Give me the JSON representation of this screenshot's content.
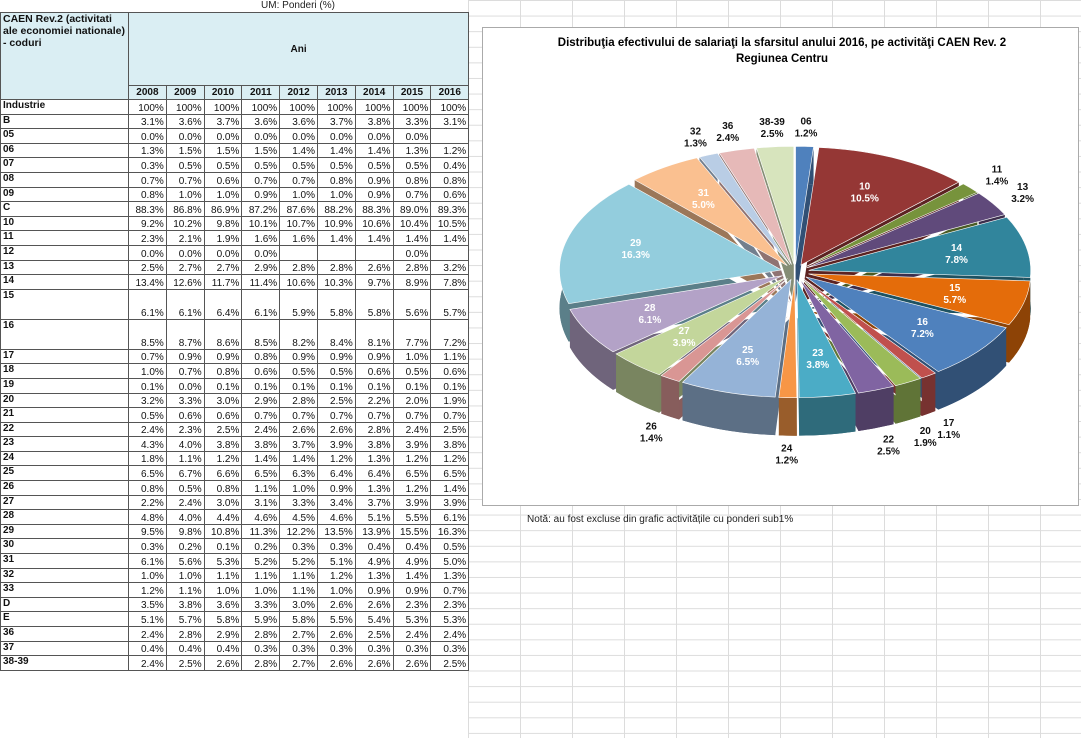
{
  "header_note": "UM: Ponderi (%)",
  "table": {
    "code_header": "CAEN Rev.2 (activitati ale economiei nationale) - coduri",
    "years_header": "Ani",
    "years": [
      "2008",
      "2009",
      "2010",
      "2011",
      "2012",
      "2013",
      "2014",
      "2015",
      "2016"
    ],
    "rows": [
      {
        "code": "Industrie",
        "cells": [
          "100%",
          "100%",
          "100%",
          "100%",
          "100%",
          "100%",
          "100%",
          "100%",
          "100%"
        ]
      },
      {
        "code": "B",
        "cells": [
          "3.1%",
          "3.6%",
          "3.7%",
          "3.6%",
          "3.6%",
          "3.7%",
          "3.8%",
          "3.3%",
          "3.1%"
        ]
      },
      {
        "code": "05",
        "cells": [
          "0.0%",
          "0.0%",
          "0.0%",
          "0.0%",
          "0.0%",
          "0.0%",
          "0.0%",
          "0.0%",
          null
        ]
      },
      {
        "code": "06",
        "cells": [
          "1.3%",
          "1.5%",
          "1.5%",
          "1.5%",
          "1.4%",
          "1.4%",
          "1.4%",
          "1.3%",
          "1.2%"
        ]
      },
      {
        "code": "07",
        "cells": [
          "0.3%",
          "0.5%",
          "0.5%",
          "0.5%",
          "0.5%",
          "0.5%",
          "0.5%",
          "0.5%",
          "0.4%"
        ]
      },
      {
        "code": "08",
        "cells": [
          "0.7%",
          "0.7%",
          "0.6%",
          "0.7%",
          "0.7%",
          "0.8%",
          "0.9%",
          "0.8%",
          "0.8%"
        ]
      },
      {
        "code": "09",
        "cells": [
          "0.8%",
          "1.0%",
          "1.0%",
          "0.9%",
          "1.0%",
          "1.0%",
          "0.9%",
          "0.7%",
          "0.6%"
        ]
      },
      {
        "code": "C",
        "cells": [
          "88.3%",
          "86.8%",
          "86.9%",
          "87.2%",
          "87.6%",
          "88.2%",
          "88.3%",
          "89.0%",
          "89.3%"
        ]
      },
      {
        "code": "10",
        "cells": [
          "9.2%",
          "10.2%",
          "9.8%",
          "10.1%",
          "10.7%",
          "10.9%",
          "10.6%",
          "10.4%",
          "10.5%"
        ]
      },
      {
        "code": "11",
        "cells": [
          "2.3%",
          "2.1%",
          "1.9%",
          "1.6%",
          "1.6%",
          "1.4%",
          "1.4%",
          "1.4%",
          "1.4%"
        ]
      },
      {
        "code": "12",
        "cells": [
          "0.0%",
          "0.0%",
          "0.0%",
          "0.0%",
          null,
          null,
          null,
          "0.0%",
          null
        ]
      },
      {
        "code": "13",
        "cells": [
          "2.5%",
          "2.7%",
          "2.7%",
          "2.9%",
          "2.8%",
          "2.8%",
          "2.6%",
          "2.8%",
          "3.2%"
        ]
      },
      {
        "code": "14",
        "cells": [
          "13.4%",
          "12.6%",
          "11.7%",
          "11.4%",
          "10.6%",
          "10.3%",
          "9.7%",
          "8.9%",
          "7.8%"
        ]
      },
      {
        "code": "15",
        "cells": [
          "6.1%",
          "6.1%",
          "6.4%",
          "6.1%",
          "5.9%",
          "5.8%",
          "5.8%",
          "5.6%",
          "5.7%"
        ]
      },
      {
        "code": "16",
        "cells": [
          "8.5%",
          "8.7%",
          "8.6%",
          "8.5%",
          "8.2%",
          "8.4%",
          "8.1%",
          "7.7%",
          "7.2%"
        ]
      },
      {
        "code": "17",
        "cells": [
          "0.7%",
          "0.9%",
          "0.9%",
          "0.8%",
          "0.9%",
          "0.9%",
          "0.9%",
          "1.0%",
          "1.1%"
        ]
      },
      {
        "code": "18",
        "cells": [
          "1.0%",
          "0.7%",
          "0.8%",
          "0.6%",
          "0.5%",
          "0.5%",
          "0.6%",
          "0.5%",
          "0.6%"
        ]
      },
      {
        "code": "19",
        "cells": [
          "0.1%",
          "0.0%",
          "0.1%",
          "0.1%",
          "0.1%",
          "0.1%",
          "0.1%",
          "0.1%",
          "0.1%"
        ]
      },
      {
        "code": "20",
        "cells": [
          "3.2%",
          "3.3%",
          "3.0%",
          "2.9%",
          "2.8%",
          "2.5%",
          "2.2%",
          "2.0%",
          "1.9%"
        ]
      },
      {
        "code": "21",
        "cells": [
          "0.5%",
          "0.6%",
          "0.6%",
          "0.7%",
          "0.7%",
          "0.7%",
          "0.7%",
          "0.7%",
          "0.7%"
        ]
      },
      {
        "code": "22",
        "cells": [
          "2.4%",
          "2.3%",
          "2.5%",
          "2.4%",
          "2.6%",
          "2.6%",
          "2.8%",
          "2.4%",
          "2.5%"
        ]
      },
      {
        "code": "23",
        "cells": [
          "4.3%",
          "4.0%",
          "3.8%",
          "3.8%",
          "3.7%",
          "3.9%",
          "3.8%",
          "3.9%",
          "3.8%"
        ]
      },
      {
        "code": "24",
        "cells": [
          "1.8%",
          "1.1%",
          "1.2%",
          "1.4%",
          "1.4%",
          "1.2%",
          "1.3%",
          "1.2%",
          "1.2%"
        ]
      },
      {
        "code": "25",
        "cells": [
          "6.5%",
          "6.7%",
          "6.6%",
          "6.5%",
          "6.3%",
          "6.4%",
          "6.4%",
          "6.5%",
          "6.5%"
        ]
      },
      {
        "code": "26",
        "cells": [
          "0.8%",
          "0.5%",
          "0.8%",
          "1.1%",
          "1.0%",
          "0.9%",
          "1.3%",
          "1.2%",
          "1.4%"
        ]
      },
      {
        "code": "27",
        "cells": [
          "2.2%",
          "2.4%",
          "3.0%",
          "3.1%",
          "3.3%",
          "3.4%",
          "3.7%",
          "3.9%",
          "3.9%"
        ]
      },
      {
        "code": "28",
        "cells": [
          "4.8%",
          "4.0%",
          "4.4%",
          "4.6%",
          "4.5%",
          "4.6%",
          "5.1%",
          "5.5%",
          "6.1%"
        ]
      },
      {
        "code": "29",
        "cells": [
          "9.5%",
          "9.8%",
          "10.8%",
          "11.3%",
          "12.2%",
          "13.5%",
          "13.9%",
          "15.5%",
          "16.3%"
        ]
      },
      {
        "code": "30",
        "cells": [
          "0.3%",
          "0.2%",
          "0.1%",
          "0.2%",
          "0.3%",
          "0.3%",
          "0.4%",
          "0.4%",
          "0.5%"
        ]
      },
      {
        "code": "31",
        "cells": [
          "6.1%",
          "5.6%",
          "5.3%",
          "5.2%",
          "5.2%",
          "5.1%",
          "4.9%",
          "4.9%",
          "5.0%"
        ]
      },
      {
        "code": "32",
        "cells": [
          "1.0%",
          "1.0%",
          "1.1%",
          "1.1%",
          "1.1%",
          "1.2%",
          "1.3%",
          "1.4%",
          "1.3%"
        ]
      },
      {
        "code": "33",
        "cells": [
          "1.2%",
          "1.1%",
          "1.0%",
          "1.0%",
          "1.1%",
          "1.0%",
          "0.9%",
          "0.9%",
          "0.7%"
        ]
      },
      {
        "code": "D",
        "cells": [
          "3.5%",
          "3.8%",
          "3.6%",
          "3.3%",
          "3.0%",
          "2.6%",
          "2.6%",
          "2.3%",
          "2.3%"
        ]
      },
      {
        "code": "E",
        "cells": [
          "5.1%",
          "5.7%",
          "5.8%",
          "5.9%",
          "5.8%",
          "5.5%",
          "5.4%",
          "5.3%",
          "5.3%"
        ]
      },
      {
        "code": "36",
        "cells": [
          "2.4%",
          "2.8%",
          "2.9%",
          "2.8%",
          "2.7%",
          "2.6%",
          "2.5%",
          "2.4%",
          "2.4%"
        ]
      },
      {
        "code": "37",
        "cells": [
          "0.4%",
          "0.4%",
          "0.4%",
          "0.3%",
          "0.3%",
          "0.3%",
          "0.3%",
          "0.3%",
          "0.3%"
        ]
      },
      {
        "code": "38-39",
        "cells": [
          "2.4%",
          "2.5%",
          "2.6%",
          "2.8%",
          "2.7%",
          "2.6%",
          "2.6%",
          "2.6%",
          "2.5%"
        ]
      }
    ]
  },
  "chart_data": {
    "type": "pie",
    "title": "Distribuţia efectivului de salariaţi la sfarsitul anului 2016, pe activităţi CAEN Rev. 2",
    "subtitle": "Regiunea Centru",
    "categories": [
      "06",
      "10",
      "11",
      "13",
      "14",
      "15",
      "16",
      "17",
      "20",
      "22",
      "23",
      "24",
      "25",
      "26",
      "27",
      "28",
      "29",
      "31",
      "32",
      "36",
      "38-39"
    ],
    "values": [
      1.2,
      10.5,
      1.4,
      3.2,
      7.8,
      5.7,
      7.2,
      1.1,
      1.9,
      2.5,
      3.8,
      1.2,
      6.5,
      1.4,
      3.9,
      6.1,
      16.3,
      5.0,
      1.3,
      2.4,
      2.5
    ],
    "value_labels": [
      "1.2%",
      "10.5%",
      "1.4%",
      "3.2%",
      "7.8%",
      "5.7%",
      "7.2%",
      "1.1%",
      "1.9%",
      "2.5%",
      "3.8%",
      "1.2%",
      "6.5%",
      "1.4%",
      "3.9%",
      "6.1%",
      "16.3%",
      "5.0%",
      "1.3%",
      "2.4%",
      "2.5%"
    ],
    "colors": [
      "#4f81bd",
      "#953735",
      "#77933c",
      "#604a7b",
      "#31859c",
      "#e46c0a",
      "#4f81bd",
      "#c0504d",
      "#9bbb59",
      "#8064a2",
      "#4bacc6",
      "#f79646",
      "#95b3d7",
      "#d99694",
      "#c3d69b",
      "#b3a2c7",
      "#93cddd",
      "#fac090",
      "#b9cde5",
      "#e6b9b8",
      "#d7e4bd"
    ]
  },
  "note": "Notă: au fost excluse din grafic activitățile cu ponderi sub1%"
}
